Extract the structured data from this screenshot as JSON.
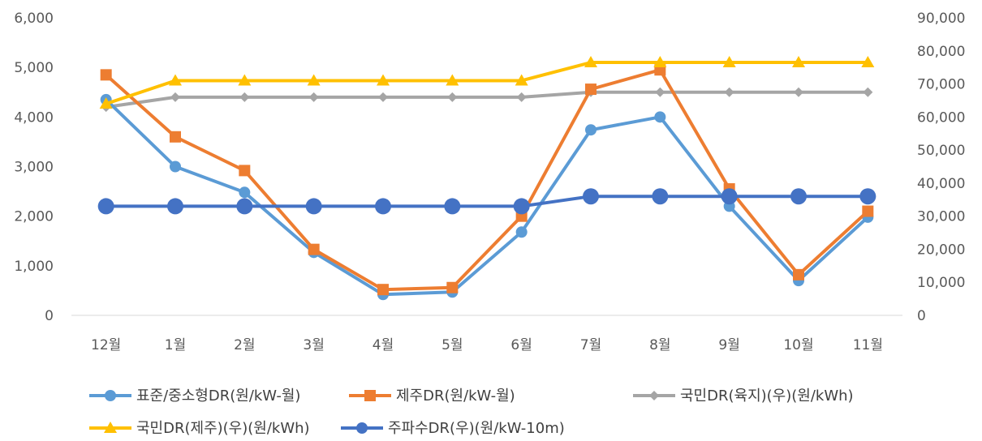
{
  "chart_data": {
    "type": "line",
    "title": "",
    "xlabel": "",
    "ylabel": "",
    "categories": [
      "12월",
      "1월",
      "2월",
      "3월",
      "4월",
      "5월",
      "6월",
      "7월",
      "8월",
      "9월",
      "10월",
      "11월"
    ],
    "y_left": {
      "ylim": [
        0,
        6000
      ],
      "ticks": [
        "0",
        "1,000",
        "2,000",
        "3,000",
        "4,000",
        "5,000",
        "6,000"
      ]
    },
    "y_right": {
      "ylim": [
        0,
        90000
      ],
      "ticks": [
        "0",
        "10,000",
        "20,000",
        "30,000",
        "40,000",
        "50,000",
        "60,000",
        "70,000",
        "80,000",
        "90,000"
      ]
    },
    "grid": false,
    "legend_position": "bottom",
    "series": [
      {
        "name": "표준/중소형DR(원/kW-월)",
        "axis": "left",
        "color": "#5B9BD5",
        "marker": "circle",
        "values": [
          4350,
          3000,
          2480,
          1270,
          420,
          470,
          1680,
          3740,
          4000,
          2200,
          700,
          1980
        ]
      },
      {
        "name": "제주DR(원/kW-월)",
        "axis": "left",
        "color": "#ED7D31",
        "marker": "square",
        "values": [
          4850,
          3600,
          2920,
          1330,
          520,
          560,
          2000,
          4560,
          4950,
          2550,
          820,
          2100
        ]
      },
      {
        "name": "국민DR(육지)(우)(원/kWh)",
        "axis": "right",
        "color": "#A5A5A5",
        "marker": "diamond",
        "values": [
          63000,
          66000,
          66000,
          66000,
          66000,
          66000,
          66000,
          67500,
          67500,
          67500,
          67500,
          67500
        ]
      },
      {
        "name": "국민DR(제주)(우)(원/kWh)",
        "axis": "right",
        "color": "#FFC000",
        "marker": "triangle",
        "values": [
          64000,
          71000,
          71000,
          71000,
          71000,
          71000,
          71000,
          76500,
          76500,
          76500,
          76500,
          76500
        ]
      },
      {
        "name": "주파수DR(우)(원/kW-10m)",
        "axis": "right",
        "color": "#4472C4",
        "marker": "circle-large",
        "values": [
          33000,
          33000,
          33000,
          33000,
          33000,
          33000,
          33000,
          36000,
          36000,
          36000,
          36000,
          36000
        ]
      }
    ]
  }
}
